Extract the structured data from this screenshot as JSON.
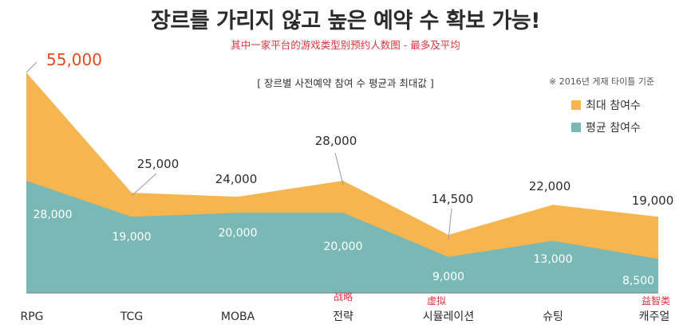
{
  "header": {
    "title": "장르를 가리지 않고 높은 예약 수 확보 가능!",
    "subtitle": "其中一家平台的游戏类型别预约人数图 - 最多及平均"
  },
  "note": "※ 2016년 게재 타이틀 기준",
  "chart_data": {
    "type": "area",
    "title": "[ 장르별 사전예약 참여 수 평균과 최대값 ]",
    "categories": [
      "RPG",
      "TCG",
      "MOBA",
      "전략",
      "시뮬레이션",
      "슈팅",
      "캐주얼"
    ],
    "category_translations": [
      "",
      "",
      "",
      "战略",
      "虚拟",
      "",
      "益智类"
    ],
    "series": [
      {
        "name": "최대 참여수",
        "color": "#f7b54f",
        "values": [
          55000,
          25000,
          24000,
          28000,
          14500,
          22000,
          19000
        ],
        "labels": [
          "55,000",
          "25,000",
          "24,000",
          "28,000",
          "14,500",
          "22,000",
          "19,000"
        ]
      },
      {
        "name": "평균 참여수",
        "color": "#7ab8b5",
        "values": [
          28000,
          19000,
          20000,
          20000,
          9000,
          13000,
          8500
        ],
        "labels": [
          "28,000",
          "19,000",
          "20,000",
          "20,000",
          "9,000",
          "13,000",
          "8,500"
        ]
      }
    ],
    "highlight_color": "#e8491d",
    "ylim": [
      0,
      55000
    ]
  }
}
